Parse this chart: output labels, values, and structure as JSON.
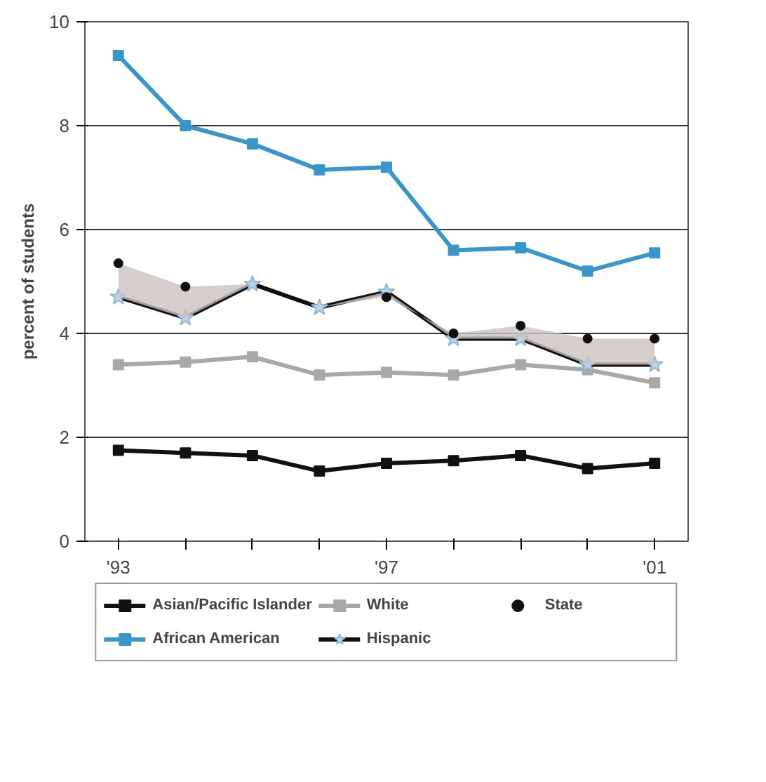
{
  "chart_data": {
    "type": "line",
    "ylabel": "percent of students",
    "x": [
      1993,
      1994,
      1995,
      1996,
      1997,
      1998,
      1999,
      2000,
      2001
    ],
    "xlim": [
      1992.5,
      2001.5
    ],
    "xticks": [
      {
        "value": 1993,
        "label": "'93"
      },
      {
        "value": 1994,
        "label": null
      },
      {
        "value": 1995,
        "label": null
      },
      {
        "value": 1996,
        "label": null
      },
      {
        "value": 1997,
        "label": "'97"
      },
      {
        "value": 1998,
        "label": null
      },
      {
        "value": 1999,
        "label": null
      },
      {
        "value": 2000,
        "label": null
      },
      {
        "value": 2001,
        "label": "'01"
      }
    ],
    "ylim": [
      0,
      10
    ],
    "yticks": [
      0,
      2,
      4,
      6,
      8,
      10
    ],
    "grid": "y",
    "legend": "bottom",
    "series": [
      {
        "name": "Asian/Pacific Islander",
        "color": "#111111",
        "marker": "square",
        "values": [
          1.75,
          1.7,
          1.65,
          1.35,
          1.5,
          1.55,
          1.65,
          1.4,
          1.5
        ]
      },
      {
        "name": "White",
        "color": "#a8a8a8",
        "marker": "square",
        "values": [
          3.4,
          3.45,
          3.55,
          3.2,
          3.25,
          3.2,
          3.4,
          3.3,
          3.05
        ]
      },
      {
        "name": "State",
        "type": "scatter",
        "color": "#111111",
        "marker": "circle",
        "values": [
          5.35,
          4.9,
          null,
          null,
          4.7,
          4.0,
          4.15,
          3.9,
          3.9
        ],
        "lower": [
          4.7,
          4.3,
          4.95,
          4.5,
          4.8,
          3.9,
          3.9,
          3.4,
          3.4
        ],
        "upper": [
          5.35,
          4.9,
          4.95,
          4.5,
          4.7,
          4.0,
          4.15,
          3.9,
          3.9
        ]
      },
      {
        "name": "African American",
        "color": "#3a96c8",
        "marker": "square",
        "values": [
          9.35,
          8.0,
          7.65,
          7.15,
          7.2,
          5.6,
          5.65,
          5.2,
          5.55
        ]
      },
      {
        "name": "Hispanic",
        "color": "#111111",
        "marker": "star",
        "values": [
          4.7,
          4.3,
          4.95,
          4.5,
          4.8,
          3.9,
          3.9,
          3.4,
          3.4
        ]
      }
    ]
  }
}
